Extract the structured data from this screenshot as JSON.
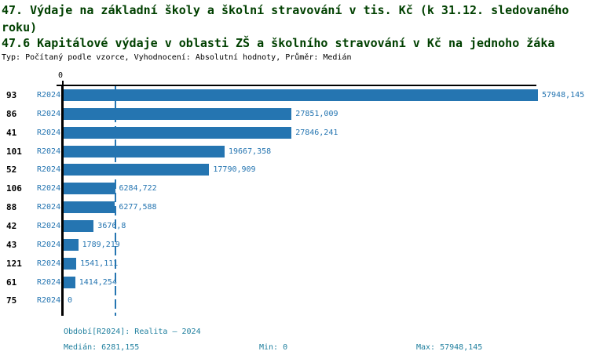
{
  "header": {
    "title": "47. Výdaje na základní školy a školní stravování v tis. Kč (k 31.12. sledovaného roku)",
    "subtitle": "47.6 Kapitálové výdaje v oblasti ZŠ a školního stravování v Kč na jednoho žáka",
    "meta": "Typ: Počítaný podle vzorce, Vyhodnocení: Absolutní hodnoty, Průměr: Medián",
    "title_color": "#004000"
  },
  "chart_data": {
    "type": "bar",
    "orientation": "horizontal",
    "title": "47. Výdaje na základní školy a školní stravování v tis. Kč (k 31.12. sledovaného roku)",
    "subtitle": "47.6 Kapitálové výdaje v oblasti ZŠ a školního stravování v Kč na jednoho žáka",
    "series_label": "R2024",
    "categories": [
      "93",
      "86",
      "41",
      "101",
      "52",
      "106",
      "88",
      "42",
      "43",
      "121",
      "61",
      "75"
    ],
    "values": [
      57948.145,
      27851.009,
      27846.241,
      19667.358,
      17790.909,
      6284.722,
      6277.588,
      3676.8,
      1789.219,
      1541.111,
      1414.254,
      0
    ],
    "value_labels": [
      "57948,145",
      "27851,009",
      "27846,241",
      "19667,358",
      "17790,909",
      "6284,722",
      "6277,588",
      "3676,8",
      "1789,219",
      "1541,111",
      "1414,254",
      "0"
    ],
    "xlim": [
      0,
      57948.145
    ],
    "x_axis": {
      "zero_label": "0"
    },
    "median": 6281.155,
    "grid": false,
    "legend_position": "none",
    "bar_color": "#2575b1",
    "label_color": "#2575b1",
    "median_line_color": "#2575b1",
    "axis_color": "#000000"
  },
  "footer": {
    "period": "Období[R2024]: Realita – 2024",
    "median_label": "Medián: 6281,155",
    "min_label": "Min: 0",
    "max_label": "Max: 57948,145",
    "text_color": "#1f7f9e"
  }
}
